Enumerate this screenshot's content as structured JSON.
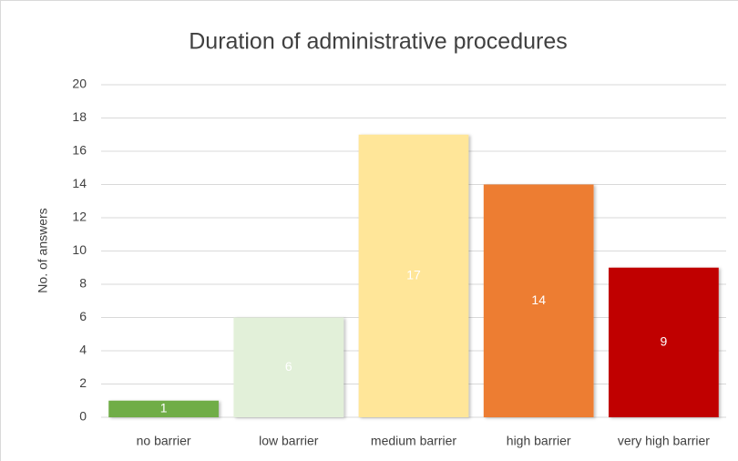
{
  "chart_data": {
    "type": "bar",
    "title": "Duration of administrative procedures",
    "y_label": "No. of answers",
    "categories": [
      "no barrier",
      "low barrier",
      "medium barrier",
      "high barrier",
      "very high barrier"
    ],
    "values": [
      1,
      6,
      17,
      14,
      9
    ],
    "colors": [
      "#70ad47",
      "#e2f0d9",
      "#ffe699",
      "#ed7d31",
      "#c00000"
    ],
    "ylim": [
      0,
      20
    ],
    "yticks": [
      0,
      2,
      4,
      6,
      8,
      10,
      12,
      14,
      16,
      18,
      20
    ],
    "grid": true
  }
}
